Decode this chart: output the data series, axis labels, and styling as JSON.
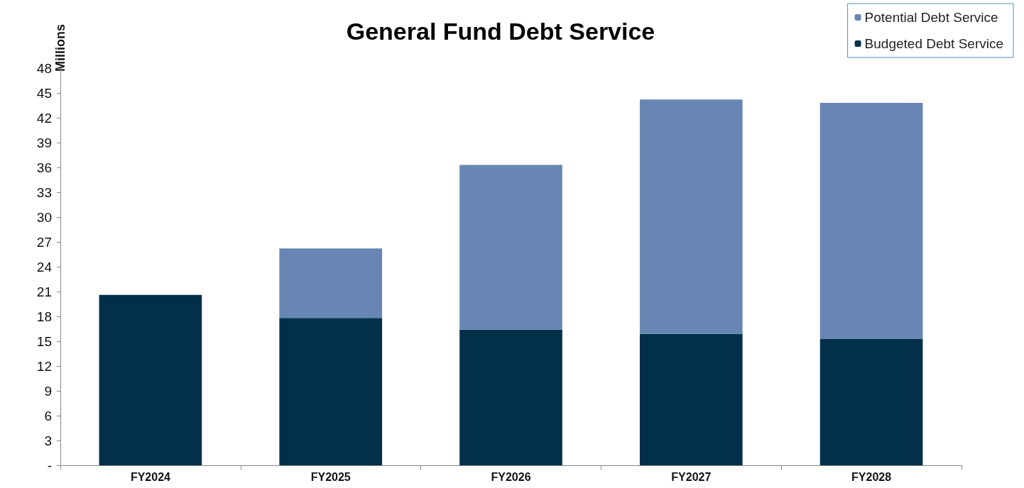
{
  "chart_data": {
    "type": "bar",
    "title": "General Fund Debt Service",
    "ylabel": "Millions",
    "categories": [
      "FY2024",
      "FY2025",
      "FY2026",
      "FY2027",
      "FY2028"
    ],
    "series": [
      {
        "name": "Budgeted Debt Service",
        "color": "#02304a",
        "values": [
          20.6,
          17.8,
          16.4,
          15.9,
          15.3
        ]
      },
      {
        "name": "Potential Debt Service",
        "color": "#6786b3",
        "values": [
          null,
          8.4,
          19.9,
          28.3,
          28.5
        ]
      }
    ],
    "stacked": true,
    "ylim": [
      0,
      48
    ],
    "yticks": [
      {
        "value": 0,
        "label": "-"
      },
      3,
      6,
      9,
      12,
      15,
      18,
      21,
      24,
      27,
      30,
      33,
      36,
      39,
      42,
      45,
      48
    ],
    "grid": false,
    "legend": "top right"
  }
}
